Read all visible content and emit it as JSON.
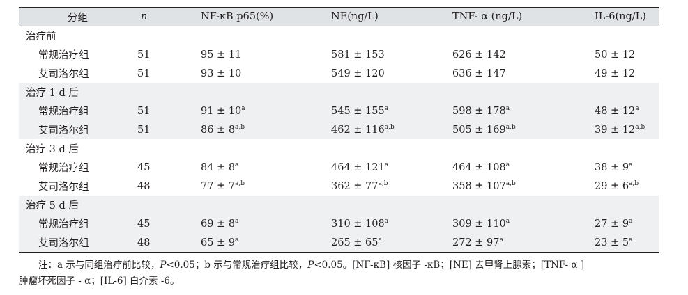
{
  "header": {
    "group": "分组",
    "n": "n",
    "nfkb": "NF-κB p65(%)",
    "ne": "NE(ng/L)",
    "tnf": "TNF- α (ng/L)",
    "il6": "IL-6(ng/L)"
  },
  "sections": [
    {
      "label": "治疗前",
      "rows": [
        {
          "group": "常规治疗组",
          "n": "51",
          "nfkb": "95 ± 11",
          "nfkb_sup": "",
          "ne": "581 ± 153",
          "ne_sup": "",
          "tnf": "626 ± 142",
          "tnf_sup": "",
          "il6": "50 ± 12",
          "il6_sup": ""
        },
        {
          "group": "艾司洛尔组",
          "n": "51",
          "nfkb": "93 ± 10",
          "nfkb_sup": "",
          "ne": "549 ± 120",
          "ne_sup": "",
          "tnf": "636 ± 147",
          "tnf_sup": "",
          "il6": "49 ± 12",
          "il6_sup": ""
        }
      ]
    },
    {
      "label": "治疗 1 d 后",
      "rows": [
        {
          "group": "常规治疗组",
          "n": "51",
          "nfkb": "91 ± 10",
          "nfkb_sup": "a",
          "ne": "545 ± 155",
          "ne_sup": "a",
          "tnf": "598 ± 178",
          "tnf_sup": "a",
          "il6": "48 ± 12",
          "il6_sup": "a"
        },
        {
          "group": "艾司洛尔组",
          "n": "51",
          "nfkb": "86 ± 8",
          "nfkb_sup": "a,b",
          "ne": "462 ± 116",
          "ne_sup": "a,b",
          "tnf": "505 ± 169",
          "tnf_sup": "a,b",
          "il6": "39 ± 12",
          "il6_sup": "a,b"
        }
      ]
    },
    {
      "label": "治疗 3 d 后",
      "rows": [
        {
          "group": "常规治疗组",
          "n": "45",
          "nfkb": "84 ± 8",
          "nfkb_sup": "a",
          "ne": "464 ± 121",
          "ne_sup": "a",
          "tnf": "464 ± 108",
          "tnf_sup": "a",
          "il6": "38 ± 9",
          "il6_sup": "a"
        },
        {
          "group": "艾司洛尔组",
          "n": "48",
          "nfkb": "77 ± 7",
          "nfkb_sup": "a,b",
          "ne": "362 ± 77",
          "ne_sup": "a,b",
          "tnf": "358 ± 107",
          "tnf_sup": "a,b",
          "il6": "29 ± 6",
          "il6_sup": "a,b"
        }
      ]
    },
    {
      "label": "治疗 5 d 后",
      "rows": [
        {
          "group": "常规治疗组",
          "n": "45",
          "nfkb": "69 ± 8",
          "nfkb_sup": "a",
          "ne": "310 ± 108",
          "ne_sup": "a",
          "tnf": "309 ± 110",
          "tnf_sup": "a",
          "il6": "27 ± 9",
          "il6_sup": "a"
        },
        {
          "group": "艾司洛尔组",
          "n": "48",
          "nfkb": "65 ± 9",
          "nfkb_sup": "a",
          "ne": "265 ± 65",
          "ne_sup": "a",
          "tnf": "272 ± 97",
          "tnf_sup": "a",
          "il6": "23 ± 5",
          "il6_sup": "a"
        }
      ]
    }
  ],
  "note": {
    "prefix": "注：a 示与同组治疗前比较，",
    "p1": "P",
    "p1_rest": "<0.05；b 示与常规治疗组比较，",
    "p2": "P",
    "p2_rest": "<0.05。[NF-κB] 核因子 -κB；[NE] 去甲肾上腺素；[TNF- α ]",
    "line2": "肿瘤坏死因子 - α；[IL-6] 白介素 -6。"
  }
}
